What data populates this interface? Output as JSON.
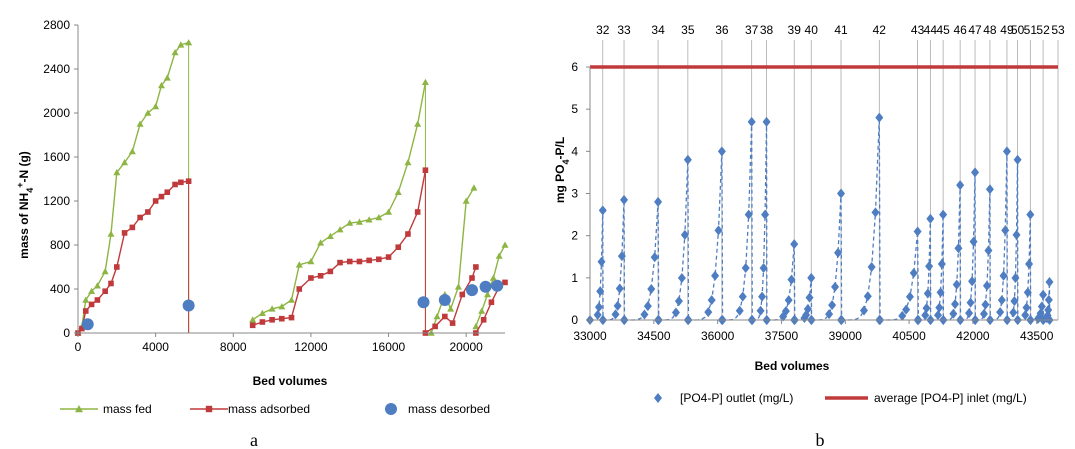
{
  "chart_data": [
    {
      "panel": "a",
      "type": "line",
      "xlabel": "Bed volumes",
      "ylabel_main": "mass of NH",
      "ylabel_sub": "4",
      "ylabel_sup": "+",
      "ylabel_tail": "-N (g)",
      "xlim": [
        0,
        22000
      ],
      "ylim": [
        0,
        2800
      ],
      "xticks": [
        0,
        4000,
        8000,
        12000,
        16000,
        20000
      ],
      "yticks": [
        0,
        400,
        800,
        1200,
        1600,
        2000,
        2400,
        2800
      ],
      "legend_position": "bottom",
      "grid": false,
      "series": [
        {
          "name": "mass fed",
          "color": "#8db543",
          "marker": "triangle",
          "segments": [
            [
              [
                0,
                0
              ],
              [
                200,
                60
              ],
              [
                400,
                300
              ],
              [
                700,
                380
              ],
              [
                1000,
                430
              ],
              [
                1400,
                560
              ],
              [
                1700,
                900
              ],
              [
                2000,
                1460
              ],
              [
                2400,
                1550
              ],
              [
                2800,
                1650
              ],
              [
                3200,
                1900
              ],
              [
                3600,
                2000
              ],
              [
                4000,
                2060
              ],
              [
                4300,
                2250
              ],
              [
                4600,
                2320
              ],
              [
                5000,
                2550
              ],
              [
                5300,
                2620
              ],
              [
                5700,
                2640
              ]
            ],
            [
              [
                9000,
                120
              ],
              [
                9500,
                180
              ],
              [
                10000,
                220
              ],
              [
                10500,
                240
              ],
              [
                11000,
                300
              ],
              [
                11400,
                620
              ],
              [
                12000,
                650
              ],
              [
                12500,
                820
              ],
              [
                13000,
                880
              ],
              [
                13500,
                940
              ],
              [
                14000,
                1000
              ],
              [
                14500,
                1010
              ],
              [
                15000,
                1030
              ],
              [
                15500,
                1050
              ],
              [
                16000,
                1100
              ],
              [
                16500,
                1280
              ],
              [
                17000,
                1550
              ],
              [
                17500,
                1900
              ],
              [
                17900,
                2280
              ]
            ],
            [
              [
                18200,
                0
              ],
              [
                18500,
                150
              ],
              [
                18900,
                350
              ],
              [
                19200,
                220
              ],
              [
                19600,
                420
              ],
              [
                20000,
                1200
              ],
              [
                20400,
                1320
              ]
            ],
            [
              [
                20500,
                60
              ],
              [
                20800,
                200
              ],
              [
                21100,
                350
              ],
              [
                21400,
                500
              ],
              [
                21700,
                700
              ],
              [
                22000,
                800
              ]
            ]
          ]
        },
        {
          "name": "mass adsorbed",
          "color": "#c0393b",
          "marker": "square",
          "segments": [
            [
              [
                0,
                0
              ],
              [
                200,
                40
              ],
              [
                400,
                200
              ],
              [
                700,
                260
              ],
              [
                1000,
                300
              ],
              [
                1400,
                380
              ],
              [
                1700,
                450
              ],
              [
                2000,
                600
              ],
              [
                2400,
                910
              ],
              [
                2800,
                960
              ],
              [
                3200,
                1050
              ],
              [
                3600,
                1100
              ],
              [
                4000,
                1200
              ],
              [
                4300,
                1240
              ],
              [
                4600,
                1280
              ],
              [
                5000,
                1350
              ],
              [
                5300,
                1370
              ],
              [
                5700,
                1380
              ]
            ],
            [
              [
                9000,
                70
              ],
              [
                9500,
                100
              ],
              [
                10000,
                120
              ],
              [
                10500,
                130
              ],
              [
                11000,
                140
              ],
              [
                11400,
                400
              ],
              [
                12000,
                500
              ],
              [
                12500,
                520
              ],
              [
                13000,
                560
              ],
              [
                13500,
                640
              ],
              [
                14000,
                650
              ],
              [
                14500,
                650
              ],
              [
                15000,
                660
              ],
              [
                15500,
                670
              ],
              [
                16000,
                690
              ],
              [
                16500,
                780
              ],
              [
                17000,
                900
              ],
              [
                17500,
                1100
              ],
              [
                17900,
                1480
              ]
            ],
            [
              [
                17900,
                0
              ],
              [
                18400,
                60
              ],
              [
                18900,
                150
              ],
              [
                19300,
                90
              ],
              [
                19800,
                350
              ],
              [
                20300,
                500
              ],
              [
                20500,
                600
              ]
            ],
            [
              [
                20500,
                0
              ],
              [
                20900,
                120
              ],
              [
                21300,
                280
              ],
              [
                21700,
                420
              ],
              [
                22000,
                460
              ]
            ]
          ]
        },
        {
          "name": "mass desorbed",
          "color": "#4f7dc2",
          "marker": "circle",
          "points": [
            [
              500,
              80
            ],
            [
              5700,
              250
            ],
            [
              17800,
              280
            ],
            [
              18900,
              300
            ],
            [
              20300,
              390
            ],
            [
              21000,
              420
            ],
            [
              21600,
              430
            ]
          ]
        }
      ],
      "drops": [
        {
          "x": 5700,
          "from": 2640,
          "to": 0,
          "color": "#8db543"
        },
        {
          "x": 5700,
          "from": 1380,
          "to": 0,
          "color": "#c0393b"
        },
        {
          "x": 17900,
          "from": 2280,
          "to": 0,
          "color": "#8db543"
        },
        {
          "x": 17900,
          "from": 1480,
          "to": 0,
          "color": "#c0393b"
        }
      ]
    },
    {
      "panel": "b",
      "type": "scatter",
      "xlabel": "Bed volumes",
      "ylabel_main": "mg PO",
      "ylabel_sub": "4",
      "ylabel_tail": "-P/L",
      "xlim": [
        33000,
        44000
      ],
      "ylim": [
        0,
        6
      ],
      "xticks": [
        33000,
        34500,
        36000,
        37500,
        39000,
        40500,
        42000,
        43500
      ],
      "yticks": [
        0,
        1,
        2,
        3,
        4,
        5,
        6
      ],
      "legend_position": "bottom",
      "cycle_labels": [
        "32",
        "33",
        "34",
        "35",
        "36",
        "37",
        "38",
        "39",
        "40",
        "41",
        "42",
        "43",
        "44",
        "45",
        "46",
        "47",
        "48",
        "49",
        "50",
        "51",
        "52",
        "53"
      ],
      "cycle_x": [
        33300,
        33800,
        34600,
        35300,
        36100,
        36800,
        37150,
        37800,
        38200,
        38900,
        39800,
        40700,
        41000,
        41300,
        41700,
        42050,
        42400,
        42800,
        43050,
        43350,
        43650,
        44000
      ],
      "series": [
        {
          "name": "[PO4-P] outlet (mg/L)",
          "color": "#4f7dc2",
          "marker": "diamond",
          "peaks": [
            [
              33000,
              33300,
              2.6
            ],
            [
              33300,
              33800,
              2.85
            ],
            [
              33800,
              34600,
              2.8
            ],
            [
              34600,
              35300,
              3.8
            ],
            [
              35300,
              36100,
              4.0
            ],
            [
              36100,
              36800,
              4.7
            ],
            [
              36800,
              37150,
              4.7
            ],
            [
              37150,
              37800,
              1.8
            ],
            [
              37800,
              38200,
              1.0
            ],
            [
              38200,
              38900,
              3.0
            ],
            [
              38900,
              39800,
              4.8
            ],
            [
              39800,
              40700,
              2.1
            ],
            [
              40700,
              41000,
              2.4
            ],
            [
              41000,
              41300,
              2.5
            ],
            [
              41300,
              41700,
              3.2
            ],
            [
              41700,
              42050,
              3.5
            ],
            [
              42050,
              42400,
              3.1
            ],
            [
              42400,
              42800,
              4.0
            ],
            [
              42800,
              43050,
              3.8
            ],
            [
              43050,
              43350,
              2.5
            ],
            [
              43350,
              43650,
              0.6
            ],
            [
              43650,
              43800,
              0.9
            ]
          ]
        },
        {
          "name": "average [PO4-P] inlet (mg/L)",
          "color": "#c0393b",
          "marker": "line",
          "value": 6
        }
      ]
    }
  ],
  "labels": {
    "panel_a": "a",
    "panel_b": "b"
  }
}
